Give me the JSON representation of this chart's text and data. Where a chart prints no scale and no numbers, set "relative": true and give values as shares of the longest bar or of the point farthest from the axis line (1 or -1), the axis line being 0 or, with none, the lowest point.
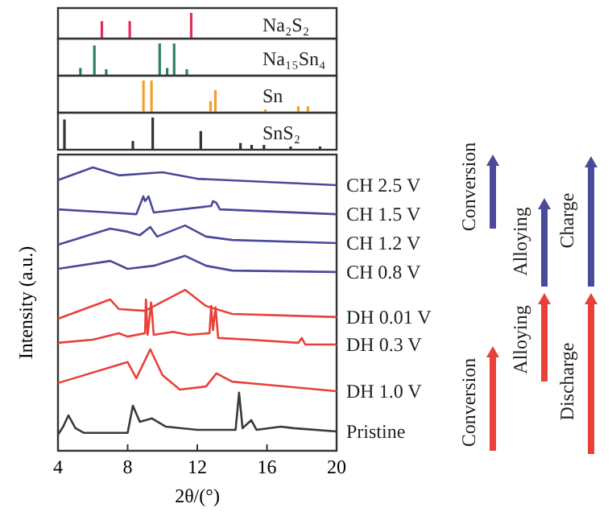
{
  "chart_data": [
    {
      "type": "bar",
      "relative": true,
      "xlim": [
        4,
        20
      ],
      "tick_labels": false,
      "series": [
        {
          "name": "Na₂S₂",
          "color": "#e0305a",
          "x": [
            6.52,
            8.12,
            11.65
          ],
          "values": [
            0.68,
            0.68,
            1
          ]
        }
      ]
    },
    {
      "type": "bar",
      "relative": true,
      "xlim": [
        4,
        20
      ],
      "tick_labels": false,
      "series": [
        {
          "name": "Na₁₅Sn₄",
          "color": "#2e8060",
          "x": [
            5.29,
            6.09,
            6.77,
            9.84,
            10.27,
            10.67,
            11.4
          ],
          "values": [
            0.24,
            0.94,
            0.2,
            1,
            0.24,
            1,
            0.2
          ]
        }
      ]
    },
    {
      "type": "bar",
      "relative": true,
      "xlim": [
        4,
        20
      ],
      "tick_labels": false,
      "series": [
        {
          "name": "Sn",
          "color": "#f0a030",
          "x": [
            8.91,
            9.37,
            12.76,
            13.04,
            15.9,
            17.8,
            18.35
          ],
          "values": [
            1,
            1,
            0.36,
            0.7,
            0.1,
            0.2,
            0.2
          ]
        }
      ]
    },
    {
      "type": "bar",
      "relative": true,
      "xlim": [
        4,
        20
      ],
      "tick_labels": false,
      "series": [
        {
          "name": "SnS₂",
          "color": "#333333",
          "x": [
            4.37,
            8.3,
            9.44,
            12.2,
            14.48,
            15.12,
            15.83,
            17.36,
            19.05
          ],
          "values": [
            0.94,
            0.27,
            1,
            0.58,
            0.21,
            0.15,
            0.15,
            0.1,
            0.1
          ]
        }
      ]
    },
    {
      "type": "line",
      "relative": true,
      "xlim": [
        4,
        20
      ],
      "xticks": [
        4,
        8,
        12,
        16,
        20
      ],
      "xlabel": "2θ/(°)",
      "ylabel": "Intensity (a.u.)",
      "tick_labels": "x",
      "annotations": [
        "Conversion",
        "Alloying",
        "Charge",
        "Conversion",
        "Alloying",
        "Discharge"
      ],
      "series": [
        {
          "name": "CH 2.5 V",
          "color": "#4a4a9a",
          "x": [
            4,
            6,
            7.5,
            10,
            12,
            20
          ],
          "values": [
            0.955,
            1,
            0.972,
            0.983,
            0.96,
            0.9375
          ]
        },
        {
          "name": "CH 1.5 V",
          "color": "#4a4a9a",
          "x": [
            4,
            7,
            8.5,
            8.9,
            9.0,
            9.2,
            9.5,
            12.8,
            12.9,
            13.1,
            13.3,
            20
          ],
          "values": [
            0.852,
            0.841,
            0.835,
            0.898,
            0.881,
            0.898,
            0.841,
            0.864,
            0.881,
            0.875,
            0.852,
            0.835
          ]
        },
        {
          "name": "CH 1.2 V",
          "color": "#4a4a9a",
          "x": [
            4,
            7,
            8,
            8.7,
            9.3,
            9.7,
            11.3,
            12.5,
            14,
            20
          ],
          "values": [
            0.727,
            0.784,
            0.773,
            0.761,
            0.79,
            0.756,
            0.795,
            0.756,
            0.744,
            0.733
          ]
        },
        {
          "name": "CH 0.8 V",
          "color": "#4a4a9a",
          "x": [
            4,
            7,
            8,
            9.5,
            11.3,
            12.5,
            14,
            20
          ],
          "values": [
            0.642,
            0.67,
            0.642,
            0.653,
            0.688,
            0.653,
            0.636,
            0.631
          ]
        },
        {
          "name": "DH 0.01 V",
          "color": "#e8413a",
          "x": [
            4,
            7,
            7.5,
            9,
            11.3,
            12.5,
            14,
            20
          ],
          "values": [
            0.466,
            0.534,
            0.5,
            0.494,
            0.568,
            0.511,
            0.483,
            0.472
          ]
        },
        {
          "name": "DH 0.3 V",
          "color": "#e8413a",
          "x": [
            4,
            6,
            7.5,
            8,
            9,
            9.05,
            9.15,
            9.35,
            9.5,
            10.6,
            11.5,
            12.7,
            12.8,
            12.9,
            13.05,
            13.2,
            15,
            17.8,
            18,
            18.2,
            20
          ],
          "values": [
            0.381,
            0.392,
            0.415,
            0.403,
            0.415,
            0.534,
            0.409,
            0.523,
            0.409,
            0.42,
            0.409,
            0.415,
            0.511,
            0.426,
            0.506,
            0.398,
            0.392,
            0.381,
            0.398,
            0.375,
            0.375
          ]
        },
        {
          "name": "DH 1.0 V",
          "color": "#e8413a",
          "x": [
            4,
            8,
            8.5,
            9.3,
            10,
            11,
            12.5,
            13.1,
            14,
            16,
            20
          ],
          "values": [
            0.239,
            0.313,
            0.256,
            0.358,
            0.267,
            0.216,
            0.227,
            0.273,
            0.244,
            0.233,
            0.21
          ]
        },
        {
          "name": "Pristine",
          "color": "#3a3a3a",
          "x": [
            4,
            4.3,
            4.6,
            5,
            5.5,
            8,
            8.3,
            8.7,
            9.4,
            10.2,
            12,
            14.2,
            14.4,
            14.6,
            15.1,
            15.4,
            16.8,
            17.5,
            20
          ],
          "values": [
            0.057,
            0.085,
            0.125,
            0.08,
            0.063,
            0.063,
            0.159,
            0.102,
            0.114,
            0.085,
            0.074,
            0.074,
            0.205,
            0.08,
            0.108,
            0.074,
            0.085,
            0.08,
            0.068
          ]
        }
      ]
    }
  ]
}
